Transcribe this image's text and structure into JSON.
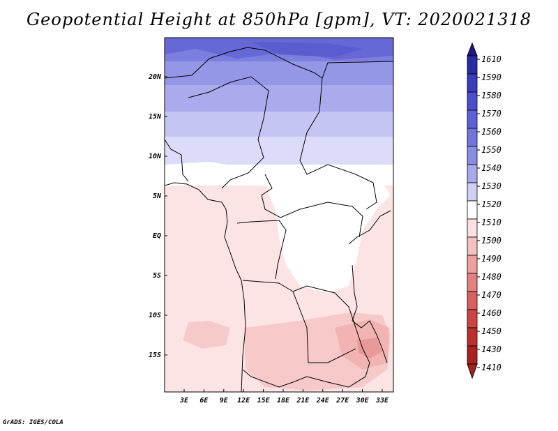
{
  "title": "Geopotential Height at 850hPa [gpm], VT: 2020021318",
  "footer": "GrADS: IGES/COLA",
  "map": {
    "lat_labels": [
      "20N",
      "15N",
      "10N",
      "5N",
      "EQ",
      "5S",
      "10S",
      "15S"
    ],
    "lon_labels": [
      "3E",
      "6E",
      "9E",
      "12E",
      "15E",
      "18E",
      "21E",
      "24E",
      "27E",
      "30E",
      "33E"
    ]
  },
  "colorbar": {
    "levels": [
      "1610",
      "1590",
      "1580",
      "1570",
      "1560",
      "1550",
      "1540",
      "1530",
      "1520",
      "1510",
      "1500",
      "1490",
      "1480",
      "1470",
      "1460",
      "1450",
      "1430",
      "1410"
    ],
    "colors": [
      "#1b1a8c",
      "#2a2aa3",
      "#3a3cbb",
      "#4b4dcc",
      "#5e60d6",
      "#7274dc",
      "#8a8ce4",
      "#a7a9ec",
      "#cfd0f6",
      "#ffffff",
      "#fbe0e0",
      "#f5c0c0",
      "#eea0a0",
      "#e38080",
      "#d96060",
      "#cc4444",
      "#bb2f2f",
      "#a82020"
    ]
  }
}
